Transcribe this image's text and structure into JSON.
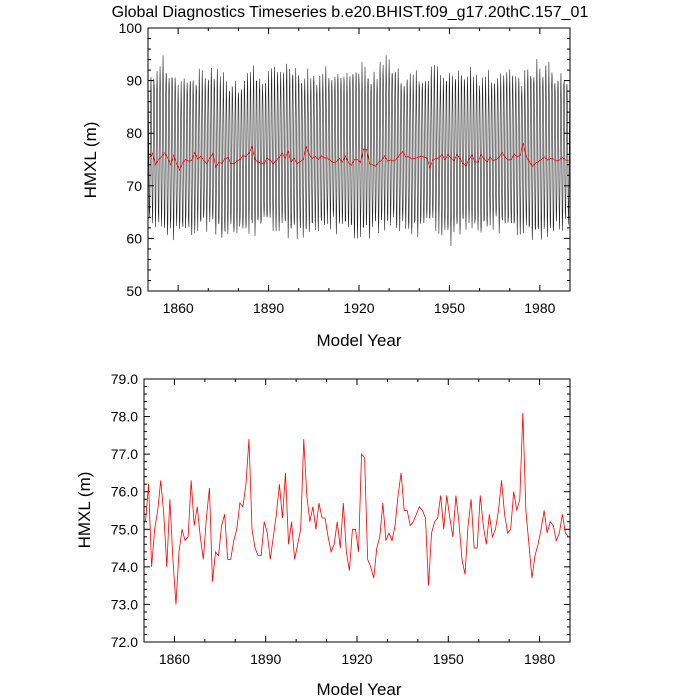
{
  "figure_title": "Global Diagnostics Timeseries b.e20.BHIST.f09_g17.20thC.157_01",
  "chart_data": [
    {
      "type": "line",
      "title": "Global Diagnostics Timeseries b.e20.BHIST.f09_g17.20thC.157_01",
      "xlabel": "Model Year",
      "ylabel": "HMXL (m)",
      "xlim": [
        1850,
        1990
      ],
      "ylim": [
        50,
        100
      ],
      "xticks": [
        1860,
        1890,
        1920,
        1950,
        1980
      ],
      "yticks": [
        50,
        60,
        70,
        80,
        90,
        100
      ],
      "ytick_labels": [
        "50",
        "60",
        "70",
        "80",
        "90",
        "100"
      ],
      "series": [
        {
          "color": "#000000",
          "resolution": "monthly",
          "envelope": {
            "x": [
              1850,
              1855,
              1860,
              1865,
              1870,
              1875,
              1880,
              1885,
              1890,
              1895,
              1900,
              1905,
              1910,
              1915,
              1920,
              1925,
              1930,
              1935,
              1940,
              1945,
              1950,
              1955,
              1960,
              1965,
              1970,
              1975,
              1980,
              1985,
              1990
            ],
            "max": [
              91,
              95,
              91,
              92,
              93,
              92,
              91,
              93,
              92,
              94,
              93,
              92,
              93,
              92,
              94,
              92,
              96,
              92,
              92,
              93,
              92,
              93,
              92,
              92,
              93,
              92,
              95,
              93,
              92
            ],
            "min": [
              62,
              60,
              59,
              60,
              61,
              59,
              60,
              60,
              61,
              60,
              59,
              60,
              61,
              60,
              59,
              60,
              61,
              60,
              60,
              61,
              58,
              61,
              60,
              61,
              60,
              60,
              59,
              60,
              61
            ]
          }
        },
        {
          "color": "#ff0000",
          "resolution": "annual",
          "x": [
            1850,
            1851,
            1852,
            1853,
            1854,
            1855,
            1856,
            1857,
            1858,
            1859,
            1860,
            1861,
            1862,
            1863,
            1864,
            1865,
            1866,
            1867,
            1868,
            1869,
            1870,
            1871,
            1872,
            1873,
            1874,
            1875,
            1876,
            1877,
            1878,
            1879,
            1880,
            1881,
            1882,
            1883,
            1884,
            1885,
            1886,
            1887,
            1888,
            1889,
            1890,
            1891,
            1892,
            1893,
            1894,
            1895,
            1896,
            1897,
            1898,
            1899,
            1900,
            1901,
            1902,
            1903,
            1904,
            1905,
            1906,
            1907,
            1908,
            1909,
            1910,
            1911,
            1912,
            1913,
            1914,
            1915,
            1916,
            1917,
            1918,
            1919,
            1920,
            1921,
            1922,
            1923,
            1924,
            1925,
            1926,
            1927,
            1928,
            1929,
            1930,
            1931,
            1932,
            1933,
            1934,
            1935,
            1936,
            1937,
            1938,
            1939,
            1940,
            1941,
            1942,
            1943,
            1944,
            1945,
            1946,
            1947,
            1948,
            1949,
            1950,
            1951,
            1952,
            1953,
            1954,
            1955,
            1956,
            1957,
            1958,
            1959,
            1960,
            1961,
            1962,
            1963,
            1964,
            1965,
            1966,
            1967,
            1968,
            1969,
            1970,
            1971,
            1972,
            1973,
            1974,
            1975,
            1976,
            1977,
            1978,
            1979,
            1980,
            1981,
            1982,
            1983,
            1984,
            1985,
            1986,
            1987,
            1988,
            1989
          ],
          "y": [
            75.2,
            76.2,
            74.0,
            75.0,
            75.5,
            76.3,
            75.4,
            74.0,
            75.8,
            74.2,
            73.0,
            74.4,
            75.0,
            74.7,
            74.8,
            76.3,
            75.1,
            75.6,
            74.8,
            74.2,
            75.3,
            76.1,
            73.6,
            74.4,
            74.3,
            75.1,
            75.4,
            74.2,
            74.2,
            74.7,
            75.0,
            75.7,
            75.6,
            76.2,
            77.4,
            75.0,
            74.5,
            74.3,
            74.3,
            75.2,
            74.9,
            74.2,
            74.8,
            75.4,
            76.2,
            75.3,
            76.5,
            74.6,
            75.2,
            74.2,
            74.6,
            75.0,
            77.4,
            75.9,
            75.2,
            75.6,
            75.0,
            75.7,
            75.3,
            75.3,
            74.8,
            74.4,
            74.6,
            75.2,
            74.5,
            75.7,
            74.4,
            73.9,
            75.0,
            75.0,
            74.4,
            77.0,
            76.9,
            74.2,
            74.0,
            73.7,
            74.5,
            74.8,
            75.7,
            74.7,
            74.9,
            74.7,
            75.1,
            75.9,
            76.5,
            75.5,
            75.5,
            75.1,
            75.2,
            75.4,
            75.6,
            75.5,
            75.3,
            73.5,
            74.9,
            75.2,
            75.3,
            75.9,
            75.0,
            75.9,
            75.3,
            74.8,
            75.9,
            75.2,
            74.2,
            73.8,
            75.1,
            75.8,
            74.5,
            74.5,
            75.9,
            75.1,
            74.6,
            75.4,
            74.8,
            75.0,
            75.5,
            76.3,
            75.4,
            74.9,
            75.0,
            76.0,
            75.5,
            75.8,
            78.1,
            75.5,
            74.6,
            73.7,
            74.3,
            74.6,
            75.0,
            75.5,
            74.9,
            75.2,
            75.1,
            74.7,
            74.9,
            75.4,
            74.9,
            74.8
          ]
        }
      ]
    },
    {
      "type": "line",
      "title": "",
      "xlabel": "Model Year",
      "ylabel": "HMXL (m)",
      "xlim": [
        1850,
        1990
      ],
      "ylim": [
        72.0,
        79.0
      ],
      "xticks": [
        1860,
        1890,
        1920,
        1950,
        1980
      ],
      "yticks": [
        72.0,
        73.0,
        74.0,
        75.0,
        76.0,
        77.0,
        78.0,
        79.0
      ],
      "ytick_labels": [
        "72.0",
        "73.0",
        "74.0",
        "75.0",
        "76.0",
        "77.0",
        "78.0",
        "79.0"
      ],
      "series": [
        {
          "color": "#ff0000",
          "resolution": "annual",
          "x": [
            1850,
            1851,
            1852,
            1853,
            1854,
            1855,
            1856,
            1857,
            1858,
            1859,
            1860,
            1861,
            1862,
            1863,
            1864,
            1865,
            1866,
            1867,
            1868,
            1869,
            1870,
            1871,
            1872,
            1873,
            1874,
            1875,
            1876,
            1877,
            1878,
            1879,
            1880,
            1881,
            1882,
            1883,
            1884,
            1885,
            1886,
            1887,
            1888,
            1889,
            1890,
            1891,
            1892,
            1893,
            1894,
            1895,
            1896,
            1897,
            1898,
            1899,
            1900,
            1901,
            1902,
            1903,
            1904,
            1905,
            1906,
            1907,
            1908,
            1909,
            1910,
            1911,
            1912,
            1913,
            1914,
            1915,
            1916,
            1917,
            1918,
            1919,
            1920,
            1921,
            1922,
            1923,
            1924,
            1925,
            1926,
            1927,
            1928,
            1929,
            1930,
            1931,
            1932,
            1933,
            1934,
            1935,
            1936,
            1937,
            1938,
            1939,
            1940,
            1941,
            1942,
            1943,
            1944,
            1945,
            1946,
            1947,
            1948,
            1949,
            1950,
            1951,
            1952,
            1953,
            1954,
            1955,
            1956,
            1957,
            1958,
            1959,
            1960,
            1961,
            1962,
            1963,
            1964,
            1965,
            1966,
            1967,
            1968,
            1969,
            1970,
            1971,
            1972,
            1973,
            1974,
            1975,
            1976,
            1977,
            1978,
            1979,
            1980,
            1981,
            1982,
            1983,
            1984,
            1985,
            1986,
            1987,
            1988,
            1989
          ],
          "y": [
            75.2,
            76.2,
            74.0,
            75.0,
            75.5,
            76.3,
            75.4,
            74.0,
            75.8,
            74.2,
            73.0,
            74.4,
            75.0,
            74.7,
            74.8,
            76.3,
            75.1,
            75.6,
            74.8,
            74.2,
            75.3,
            76.1,
            73.6,
            74.4,
            74.3,
            75.1,
            75.4,
            74.2,
            74.2,
            74.7,
            75.0,
            75.7,
            75.6,
            76.2,
            77.4,
            75.0,
            74.5,
            74.3,
            74.3,
            75.2,
            74.9,
            74.2,
            74.8,
            75.4,
            76.2,
            75.3,
            76.5,
            74.6,
            75.2,
            74.2,
            74.6,
            75.0,
            77.4,
            75.9,
            75.2,
            75.6,
            75.0,
            75.7,
            75.3,
            75.3,
            74.8,
            74.4,
            74.6,
            75.2,
            74.5,
            75.7,
            74.4,
            73.9,
            75.0,
            75.0,
            74.4,
            77.0,
            76.9,
            74.2,
            74.0,
            73.7,
            74.5,
            74.8,
            75.7,
            74.7,
            74.9,
            74.7,
            75.1,
            75.9,
            76.5,
            75.5,
            75.5,
            75.1,
            75.2,
            75.4,
            75.6,
            75.5,
            75.3,
            73.5,
            74.9,
            75.2,
            75.3,
            75.9,
            75.0,
            75.9,
            75.3,
            74.8,
            75.9,
            75.2,
            74.2,
            73.8,
            75.1,
            75.8,
            74.5,
            74.5,
            75.9,
            75.1,
            74.6,
            75.4,
            74.8,
            75.0,
            75.5,
            76.3,
            75.4,
            74.9,
            75.0,
            76.0,
            75.5,
            75.8,
            78.1,
            75.5,
            74.6,
            73.7,
            74.3,
            74.6,
            75.0,
            75.5,
            74.9,
            75.2,
            75.1,
            74.7,
            74.9,
            75.4,
            74.9,
            74.8
          ]
        }
      ]
    }
  ]
}
